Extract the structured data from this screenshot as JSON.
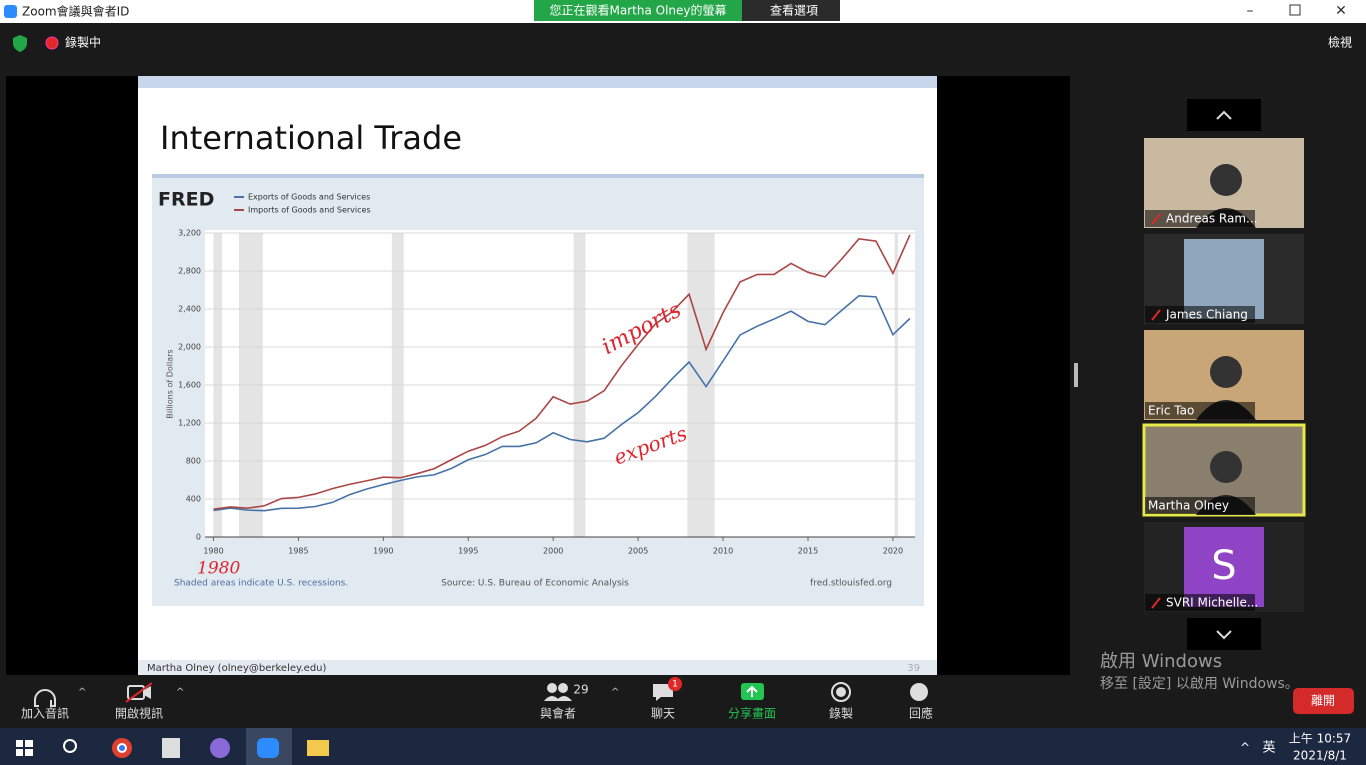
{
  "window": {
    "title": "Zoom會議與會者ID",
    "banner": "您正在觀看Martha  Olney的螢幕",
    "view_options": "查看選項"
  },
  "topbar": {
    "recording": "錄製中",
    "view": "檢視"
  },
  "slide": {
    "title": "International Trade",
    "footer": "Martha Olney (olney@berkeley.edu)",
    "page": "39",
    "annotations": {
      "imports": "imports",
      "exports": "exports",
      "year": "1980"
    },
    "chart": {
      "type": "line",
      "logo": "FRED",
      "y_label": "Billions of Dollars",
      "shading_note": "Shaded areas indicate U.S. recessions.",
      "source": "Source: U.S. Bureau of Economic Analysis",
      "site": "fred.stlouisfed.org",
      "x": [
        1980,
        1981,
        1982,
        1983,
        1984,
        1985,
        1986,
        1987,
        1988,
        1989,
        1990,
        1991,
        1992,
        1993,
        1994,
        1995,
        1996,
        1997,
        1998,
        1999,
        2000,
        2001,
        2002,
        2003,
        2004,
        2005,
        2006,
        2007,
        2008,
        2009,
        2010,
        2011,
        2012,
        2013,
        2014,
        2015,
        2016,
        2017,
        2018,
        2019,
        2020,
        2021
      ],
      "series": [
        {
          "name": "Exports of Goods and Services",
          "color": "#4572a7",
          "values": [
            280,
            305,
            283,
            277,
            302,
            303,
            321,
            364,
            445,
            504,
            552,
            595,
            633,
            655,
            721,
            813,
            868,
            954,
            953,
            992,
            1097,
            1026,
            1002,
            1040,
            1182,
            1309,
            1476,
            1665,
            1842,
            1584,
            1853,
            2127,
            2218,
            2294,
            2377,
            2270,
            2235,
            2388,
            2539,
            2528,
            2130,
            2300
          ]
        },
        {
          "name": "Imports of Goods and Services",
          "color": "#aa4643",
          "values": [
            293,
            317,
            303,
            329,
            405,
            417,
            453,
            509,
            554,
            591,
            630,
            624,
            668,
            720,
            813,
            903,
            964,
            1056,
            1115,
            1251,
            1476,
            1399,
            1430,
            1540,
            1798,
            2027,
            2240,
            2370,
            2556,
            1975,
            2362,
            2686,
            2763,
            2764,
            2880,
            2786,
            2738,
            2929,
            3138,
            3115,
            2775,
            3180
          ]
        }
      ],
      "recessions": [
        [
          1980.0,
          1980.5
        ],
        [
          1981.5,
          1982.9
        ],
        [
          1990.5,
          1991.2
        ],
        [
          2001.2,
          2001.9
        ],
        [
          2007.9,
          2009.5
        ],
        [
          2020.1,
          2020.3
        ]
      ],
      "xlim": [
        1979.5,
        2021.3
      ],
      "xticks": [
        1980,
        1985,
        1990,
        1995,
        2000,
        2005,
        2010,
        2015,
        2020
      ],
      "ylim": [
        0,
        3200
      ],
      "yticks": [
        0,
        400,
        800,
        {
          "value": 1200,
          "label": "1,200"
        },
        {
          "value": 1600,
          "label": "1,600"
        },
        {
          "value": 2000,
          "label": "2,000"
        },
        {
          "value": 2400,
          "label": "2,400"
        },
        {
          "value": 2800,
          "label": "2,800"
        },
        {
          "value": 3200,
          "label": "3,200"
        }
      ]
    }
  },
  "participants": [
    "Andreas Ram...",
    "James Chiang",
    "Eric Tao",
    "Martha Olney",
    "SVRI Michelle..."
  ],
  "avatar_letter": "S",
  "activation": {
    "title": "啟用 Windows",
    "detail": "移至 [設定] 以啟用 Windows。"
  },
  "toolbar": {
    "audio": "加入音訊",
    "video": "開啟視訊",
    "participants": "與會者",
    "participant_count": "29",
    "chat": "聊天",
    "chat_badge": "1",
    "share": "分享畫面",
    "record": "錄製",
    "reactions": "回應",
    "leave": "離開"
  },
  "taskbar": {
    "lang": "英",
    "time": "上午 10:57",
    "date": "2021/8/1"
  }
}
